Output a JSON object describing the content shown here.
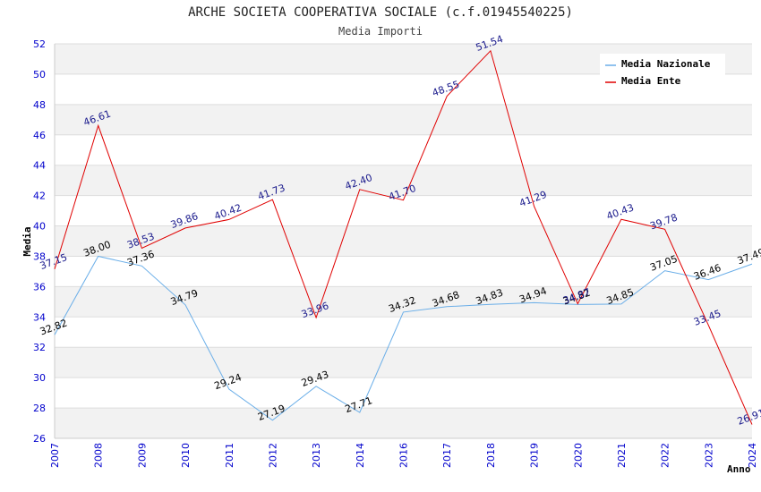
{
  "chart_data": {
    "type": "line",
    "title": "ARCHE SOCIETA COOPERATIVA SOCIALE (c.f.01945540225)",
    "subtitle": "Media Importi",
    "xlabel": "Anno",
    "ylabel": "Media",
    "ylim": [
      26,
      52
    ],
    "yticks": [
      26,
      28,
      30,
      32,
      34,
      36,
      38,
      40,
      42,
      44,
      46,
      48,
      50,
      52
    ],
    "categories": [
      "2007",
      "2008",
      "2009",
      "2010",
      "2011",
      "2012",
      "2013",
      "2014",
      "2016",
      "2017",
      "2018",
      "2019",
      "2020",
      "2021",
      "2022",
      "2023",
      "2024"
    ],
    "grid": "horizontal, alternating bands",
    "legend_position": "top-right",
    "series": [
      {
        "name": "Media Nazionale",
        "color": "#6aaee8",
        "values": [
          32.82,
          38.0,
          37.36,
          34.79,
          29.24,
          27.19,
          29.43,
          27.71,
          34.32,
          34.68,
          34.83,
          34.94,
          34.82,
          34.85,
          37.05,
          36.46,
          37.49
        ],
        "labels": [
          "32.82",
          "38.00",
          "37.36",
          "34.79",
          "29.24",
          "27.19",
          "29.43",
          "27.71",
          "34.32",
          "34.68",
          "34.83",
          "34.94",
          "34.82",
          "34.85",
          "37.05",
          "36.46",
          "37.49"
        ]
      },
      {
        "name": "Media Ente",
        "color": "#e00000",
        "values": [
          37.15,
          46.61,
          38.53,
          39.86,
          40.42,
          41.73,
          33.96,
          42.4,
          41.7,
          48.55,
          51.54,
          41.29,
          34.87,
          40.43,
          39.78,
          33.45,
          26.91
        ],
        "labels": [
          "37.15",
          "46.61",
          "38.53",
          "39.86",
          "40.42",
          "41.73",
          "33.96",
          "42.40",
          "41.70",
          "48.55",
          "51.54",
          "41.29",
          "34.87",
          "40.43",
          "39.78",
          "33.45",
          "26.91"
        ]
      }
    ]
  }
}
